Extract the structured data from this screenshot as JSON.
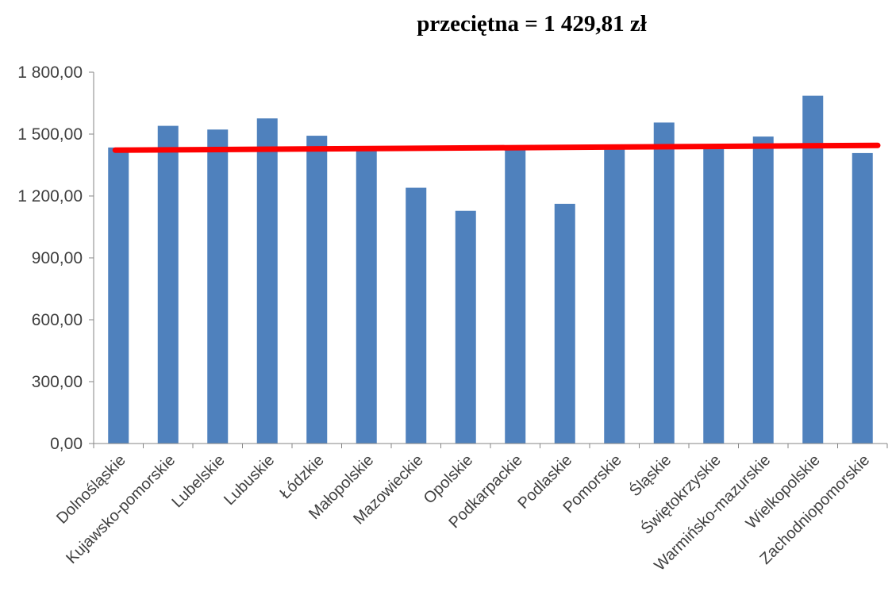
{
  "chart_data": {
    "type": "bar",
    "title": "przeciętna = 1 429,81 zł",
    "categories": [
      "Dolnośląskie",
      "Kujawsko-pomorskie",
      "Lubelskie",
      "Lubuskie",
      "Łódzkie",
      "Małopolskie",
      "Mazowieckie",
      "Opolskie",
      "Podkarpackie",
      "Podlaskie",
      "Pomorskie",
      "Śląskie",
      "Świętokrzyskie",
      "Warmińsko-mazurskie",
      "Wielkopolskie",
      "Zachodniopomorskie"
    ],
    "values": [
      1435,
      1540,
      1522,
      1576,
      1492,
      1440,
      1240,
      1128,
      1430,
      1162,
      1440,
      1556,
      1430,
      1488,
      1686,
      1408
    ],
    "reference_line": {
      "value": 1429.81
    },
    "ylim": [
      0,
      1800
    ],
    "yticks": [
      0,
      300,
      600,
      900,
      1200,
      1500,
      1800
    ],
    "ytick_labels": [
      "0,00",
      "300,00",
      "600,00",
      "900,00",
      "1 200,00",
      "1 500,00",
      "1 800,00"
    ],
    "grid": false,
    "colors": {
      "bar": "#4F81BD",
      "reference_line": "#FF0000",
      "axis": "#868686"
    }
  }
}
